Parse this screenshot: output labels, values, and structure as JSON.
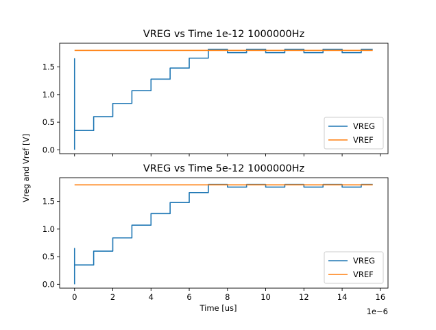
{
  "chart_data": [
    {
      "type": "line",
      "title": "VREG vs Time 1e-12 1000000Hz",
      "xlabel": "",
      "ylabel": "",
      "xlim": [
        -7.8e-07,
        1.64e-05
      ],
      "ylim": [
        -0.07,
        1.93
      ],
      "xticks": [
        0,
        2e-06,
        4e-06,
        6e-06,
        8e-06,
        1e-05,
        1.2e-05,
        1.4e-05,
        1.6e-05
      ],
      "xtick_labels": [],
      "yticks": [
        0.0,
        0.5,
        1.0,
        1.5
      ],
      "ytick_labels": [
        "0.0",
        "0.5",
        "1.0",
        "1.5"
      ],
      "legend_position": "lower right",
      "grid": false,
      "series": [
        {
          "name": "VREG",
          "color": "#1f77b4",
          "x": [
            0,
            0,
            0,
            0,
            1e-06,
            1e-06,
            2e-06,
            2e-06,
            3e-06,
            3e-06,
            4e-06,
            4e-06,
            5e-06,
            5e-06,
            6e-06,
            6e-06,
            7e-06,
            7e-06,
            8e-06,
            8e-06,
            9e-06,
            9e-06,
            1e-05,
            1e-05,
            1.1e-05,
            1.1e-05,
            1.2e-05,
            1.2e-05,
            1.3e-05,
            1.3e-05,
            1.4e-05,
            1.4e-05,
            1.5e-05,
            1.5e-05,
            1.56e-05
          ],
          "y": [
            0.0,
            1.65,
            0.35,
            0.35,
            0.35,
            0.6,
            0.6,
            0.84,
            0.84,
            1.07,
            1.07,
            1.28,
            1.28,
            1.48,
            1.48,
            1.66,
            1.66,
            1.82,
            1.82,
            1.76,
            1.76,
            1.82,
            1.82,
            1.76,
            1.76,
            1.82,
            1.82,
            1.76,
            1.76,
            1.82,
            1.82,
            1.76,
            1.76,
            1.82,
            1.82
          ]
        },
        {
          "name": "VREF",
          "color": "#ff7f0e",
          "x": [
            0,
            1.56e-05
          ],
          "y": [
            1.8,
            1.8
          ]
        }
      ]
    },
    {
      "type": "line",
      "title": "VREG vs Time 5e-12 1000000Hz",
      "xlabel": "Time [us]",
      "ylabel": "",
      "xlim": [
        -7.8e-07,
        1.64e-05
      ],
      "ylim": [
        -0.07,
        1.93
      ],
      "xticks": [
        0,
        2e-06,
        4e-06,
        6e-06,
        8e-06,
        1e-05,
        1.2e-05,
        1.4e-05,
        1.6e-05
      ],
      "xtick_labels": [
        "0",
        "2",
        "4",
        "6",
        "8",
        "10",
        "12",
        "14",
        "16"
      ],
      "x_offset_label": "1e−6",
      "yticks": [
        0.0,
        0.5,
        1.0,
        1.5
      ],
      "ytick_labels": [
        "0.0",
        "0.5",
        "1.0",
        "1.5"
      ],
      "legend_position": "lower right",
      "grid": false,
      "series": [
        {
          "name": "VREG",
          "color": "#1f77b4",
          "x": [
            0,
            0,
            0,
            0,
            1e-06,
            1e-06,
            2e-06,
            2e-06,
            3e-06,
            3e-06,
            4e-06,
            4e-06,
            5e-06,
            5e-06,
            6e-06,
            6e-06,
            7e-06,
            7e-06,
            8e-06,
            8e-06,
            9e-06,
            9e-06,
            1e-05,
            1e-05,
            1.1e-05,
            1.1e-05,
            1.2e-05,
            1.2e-05,
            1.3e-05,
            1.3e-05,
            1.4e-05,
            1.4e-05,
            1.5e-05,
            1.5e-05,
            1.56e-05
          ],
          "y": [
            0.0,
            0.65,
            0.35,
            0.35,
            0.35,
            0.6,
            0.6,
            0.84,
            0.84,
            1.07,
            1.07,
            1.28,
            1.28,
            1.48,
            1.48,
            1.66,
            1.66,
            1.81,
            1.81,
            1.76,
            1.76,
            1.81,
            1.81,
            1.76,
            1.76,
            1.81,
            1.81,
            1.76,
            1.76,
            1.81,
            1.81,
            1.76,
            1.76,
            1.81,
            1.81
          ]
        },
        {
          "name": "VREF",
          "color": "#ff7f0e",
          "x": [
            0,
            1.56e-05
          ],
          "y": [
            1.8,
            1.8
          ]
        }
      ]
    }
  ],
  "shared_ylabel": "Vreg and Vref [V]"
}
